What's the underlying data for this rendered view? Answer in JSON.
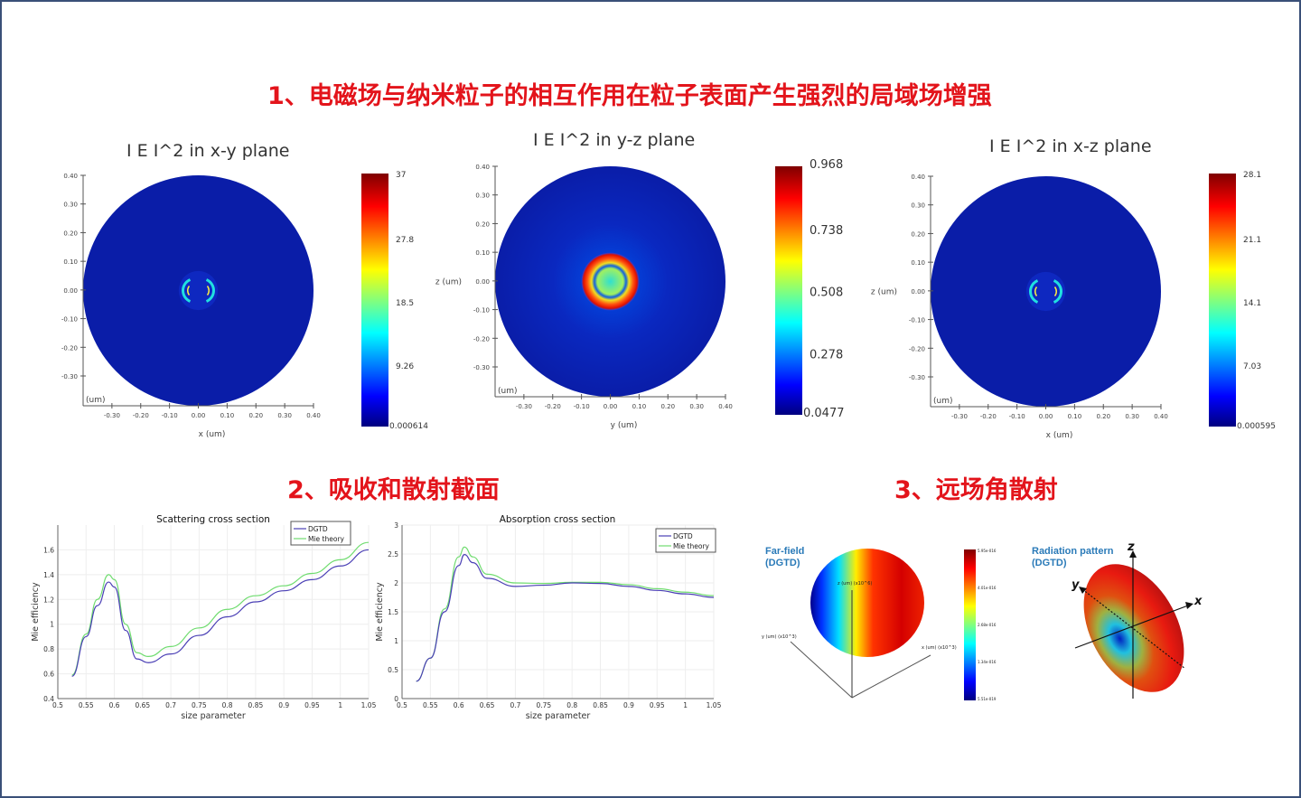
{
  "headings": {
    "section1": "1、电磁场与纳米粒子的相互作用在粒子表面产生强烈的局域场增强",
    "section2": "2、吸收和散射截面",
    "section3": "3、远场角散射"
  },
  "field_maps": [
    {
      "title": "I E I^2 in x-y plane",
      "xlabel": "x (um)",
      "ylabel": "y (um)",
      "unit_label": "(um)",
      "xticks": [
        "-0.30",
        "-0.20",
        "-0.10",
        "0.00",
        "0.10",
        "0.20",
        "0.30",
        "0.40"
      ],
      "yticks": [
        "0.40",
        "0.30",
        "0.20",
        "0.10",
        "0.00",
        "-0.10",
        "-0.20",
        "-0.30"
      ],
      "colorbar": [
        "37",
        "27.8",
        "18.5",
        "9.26",
        "0.000614"
      ]
    },
    {
      "title": "I E I^2 in y-z plane",
      "xlabel": "y (um)",
      "ylabel": "z (um)",
      "unit_label": "(um)",
      "xticks": [
        "-0.30",
        "-0.20",
        "-0.10",
        "0.00",
        "0.10",
        "0.20",
        "0.30",
        "0.40"
      ],
      "yticks": [
        "0.40",
        "0.30",
        "0.20",
        "0.10",
        "0.00",
        "-0.10",
        "-0.20",
        "-0.30"
      ],
      "colorbar": [
        "0.968",
        "0.738",
        "0.508",
        "0.278",
        "0.0477"
      ]
    },
    {
      "title": "I E I^2 in x-z plane",
      "xlabel": "x (um)",
      "ylabel": "z (um)",
      "unit_label": "(um)",
      "xticks": [
        "-0.30",
        "-0.20",
        "-0.10",
        "0.00",
        "0.10",
        "0.20",
        "0.30",
        "0.40"
      ],
      "yticks": [
        "0.40",
        "0.30",
        "0.20",
        "0.10",
        "0.00",
        "-0.10",
        "-0.20",
        "-0.30"
      ],
      "colorbar": [
        "28.1",
        "21.1",
        "14.1",
        "7.03",
        "0.000595"
      ]
    }
  ],
  "farfield": {
    "label_line1": "Far-field",
    "label_line2": "(DGTD)",
    "z_axis": "z (um) (x10^6)",
    "y_axis": "y (um) (x10^3)",
    "x_axis": "x (um) (x10^3)",
    "colorbar": [
      "5.95e-016",
      "4.01e-016",
      "2.68e-016",
      "1.34e-016",
      "5.51e-019"
    ]
  },
  "radiation": {
    "label_line1": "Radiation pattern",
    "label_line2": "(DGTD)",
    "axis_x": "x",
    "axis_y": "y",
    "axis_z": "z"
  },
  "chart_data": [
    {
      "type": "line",
      "title": "Scattering cross section",
      "xlabel": "size parameter",
      "ylabel": "Mie efficiency",
      "xlim": [
        0.5,
        1.05
      ],
      "ylim": [
        0.4,
        1.8
      ],
      "xticks": [
        "0.5",
        "0.55",
        "0.6",
        "0.65",
        "0.7",
        "0.75",
        "0.8",
        "0.85",
        "0.9",
        "0.95",
        "1",
        "1.05"
      ],
      "yticks": [
        "0.4",
        "0.6",
        "0.8",
        "1",
        "1.2",
        "1.4",
        "1.6"
      ],
      "grid": true,
      "legend_position": "top-right",
      "x": [
        0.525,
        0.55,
        0.57,
        0.59,
        0.6,
        0.62,
        0.64,
        0.66,
        0.7,
        0.75,
        0.8,
        0.85,
        0.9,
        0.95,
        1.0,
        1.05
      ],
      "series": [
        {
          "name": "DGTD",
          "color": "#4a3fb5",
          "values": [
            0.58,
            0.9,
            1.15,
            1.34,
            1.3,
            0.95,
            0.72,
            0.69,
            0.76,
            0.91,
            1.06,
            1.18,
            1.27,
            1.36,
            1.47,
            1.6
          ]
        },
        {
          "name": "Mie theory",
          "color": "#6fdc6f",
          "values": [
            0.59,
            0.92,
            1.2,
            1.4,
            1.36,
            1.0,
            0.77,
            0.74,
            0.82,
            0.97,
            1.12,
            1.23,
            1.31,
            1.41,
            1.52,
            1.66
          ]
        }
      ]
    },
    {
      "type": "line",
      "title": "Absorption cross section",
      "xlabel": "size parameter",
      "ylabel": "Mie efficiency",
      "xlim": [
        0.5,
        1.05
      ],
      "ylim": [
        0,
        3
      ],
      "xticks": [
        "0.5",
        "0.55",
        "0.6",
        "0.65",
        "0.7",
        "0.75",
        "0.8",
        "0.85",
        "0.9",
        "0.95",
        "1",
        "1.05"
      ],
      "yticks": [
        "0",
        "0.5",
        "1",
        "1.5",
        "2",
        "2.5",
        "3"
      ],
      "grid": true,
      "legend_position": "top-right",
      "x": [
        0.525,
        0.55,
        0.575,
        0.6,
        0.61,
        0.625,
        0.65,
        0.7,
        0.75,
        0.8,
        0.85,
        0.9,
        0.95,
        1.0,
        1.05
      ],
      "series": [
        {
          "name": "DGTD",
          "color": "#4a3fb5",
          "values": [
            0.3,
            0.7,
            1.5,
            2.3,
            2.49,
            2.35,
            2.08,
            1.94,
            1.96,
            2.0,
            1.99,
            1.94,
            1.87,
            1.81,
            1.75
          ]
        },
        {
          "name": "Mie theory",
          "color": "#6fdc6f",
          "values": [
            0.3,
            0.7,
            1.55,
            2.45,
            2.62,
            2.45,
            2.15,
            2.0,
            1.99,
            2.01,
            2.01,
            1.97,
            1.9,
            1.84,
            1.78
          ]
        }
      ]
    }
  ]
}
